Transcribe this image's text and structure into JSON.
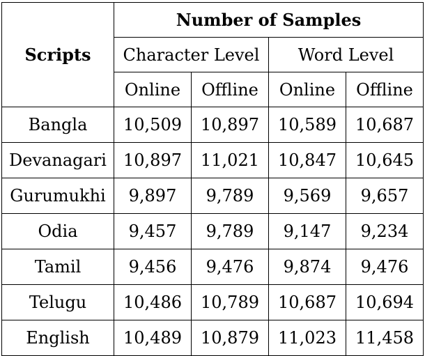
{
  "header": {
    "scripts": "Scripts",
    "number_of_samples": "Number of Samples",
    "character_level": "Character Level",
    "word_level": "Word Level",
    "columns": [
      "Online",
      "Offline",
      "Online",
      "Offline"
    ]
  },
  "rows": [
    {
      "script": "Bangla",
      "values": [
        "10,509",
        "10,897",
        "10,589",
        "10,687"
      ]
    },
    {
      "script": "Devanagari",
      "values": [
        "10,897",
        "11,021",
        "10,847",
        "10,645"
      ]
    },
    {
      "script": "Gurumukhi",
      "values": [
        "9,897",
        "9,789",
        "9,569",
        "9,657"
      ]
    },
    {
      "script": "Odia",
      "values": [
        "9,457",
        "9,789",
        "9,147",
        "9,234"
      ]
    },
    {
      "script": "Tamil",
      "values": [
        "9,456",
        "9,476",
        "9,874",
        "9,476"
      ]
    },
    {
      "script": "Telugu",
      "values": [
        "10,486",
        "10,789",
        "10,687",
        "10,694"
      ]
    },
    {
      "script": "English",
      "values": [
        "10,489",
        "10,879",
        "11,023",
        "11,458"
      ]
    }
  ]
}
